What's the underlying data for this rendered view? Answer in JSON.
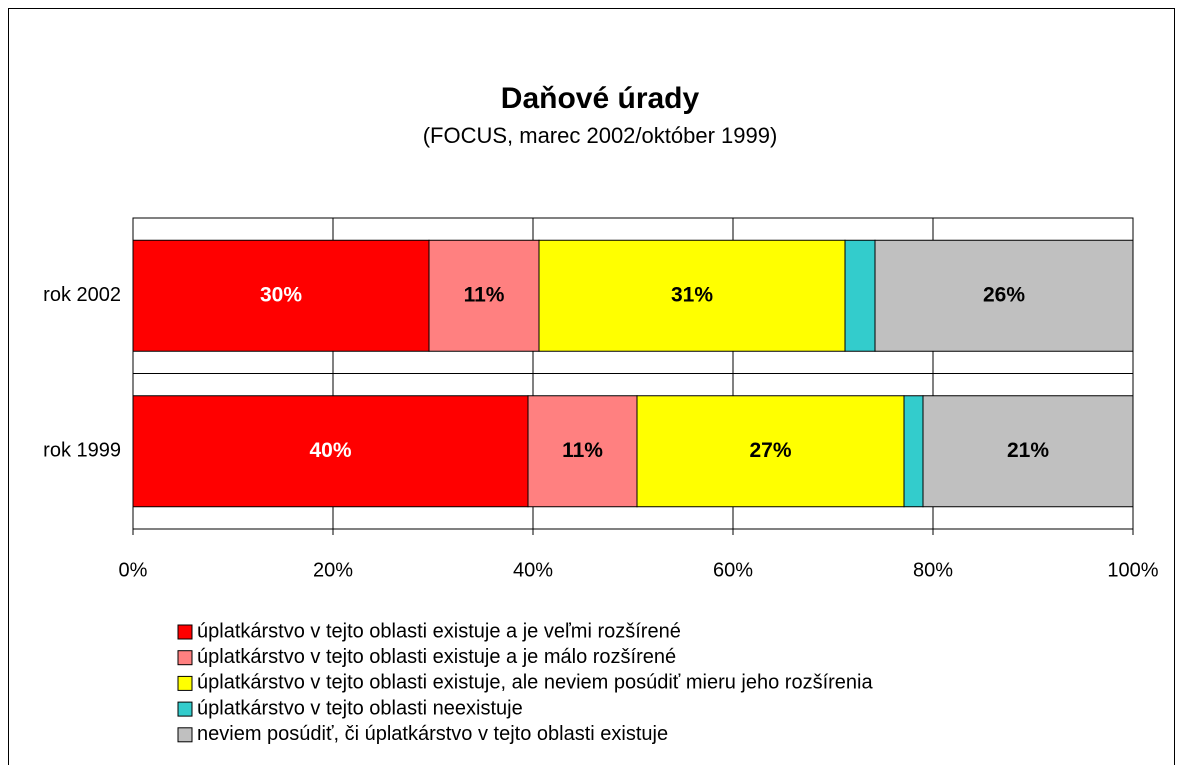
{
  "chart_data": {
    "type": "stacked_bar_horizontal",
    "title": "Daňové úrady",
    "subtitle": "(FOCUS, marec 2002/október 1999)",
    "categories": [
      "rok 2002",
      "rok 1999"
    ],
    "series": [
      {
        "name": "úplatkárstvo v tejto oblasti existuje a je veľmi rozšírené",
        "color": "#ff0000",
        "label_color": "#ffffff",
        "values": [
          29.6,
          39.5
        ],
        "value_labels": [
          "30%",
          "40%"
        ]
      },
      {
        "name": "úplatkárstvo v tejto oblasti existuje a je málo rozšírené",
        "color": "#ff8080",
        "label_color": "#000000",
        "values": [
          11.0,
          10.9
        ],
        "value_labels": [
          "11%",
          "11%"
        ]
      },
      {
        "name": "úplatkárstvo v tejto oblasti existuje, ale neviem posúdiť mieru jeho rozšírenia",
        "color": "#ffff00",
        "label_color": "#000000",
        "values": [
          30.6,
          26.7
        ],
        "value_labels": [
          "31%",
          "27%"
        ]
      },
      {
        "name": "úplatkárstvo v tejto oblasti neexistuje",
        "color": "#33cccc",
        "label_color": "#000000",
        "values": [
          3.0,
          1.9
        ],
        "value_labels": [
          null,
          null
        ]
      },
      {
        "name": "neviem posúdiť, či úplatkárstvo v tejto oblasti existuje",
        "color": "#c0c0c0",
        "label_color": "#000000",
        "values": [
          25.8,
          21.0
        ],
        "value_labels": [
          "26%",
          "21%"
        ]
      }
    ],
    "xlim": [
      0,
      100
    ],
    "xticks": [
      {
        "value": 0,
        "label": "0%"
      },
      {
        "value": 20,
        "label": "20%"
      },
      {
        "value": 40,
        "label": "40%"
      },
      {
        "value": 60,
        "label": "60%"
      },
      {
        "value": 80,
        "label": "80%"
      },
      {
        "value": 100,
        "label": "100%"
      }
    ],
    "grid": true
  }
}
